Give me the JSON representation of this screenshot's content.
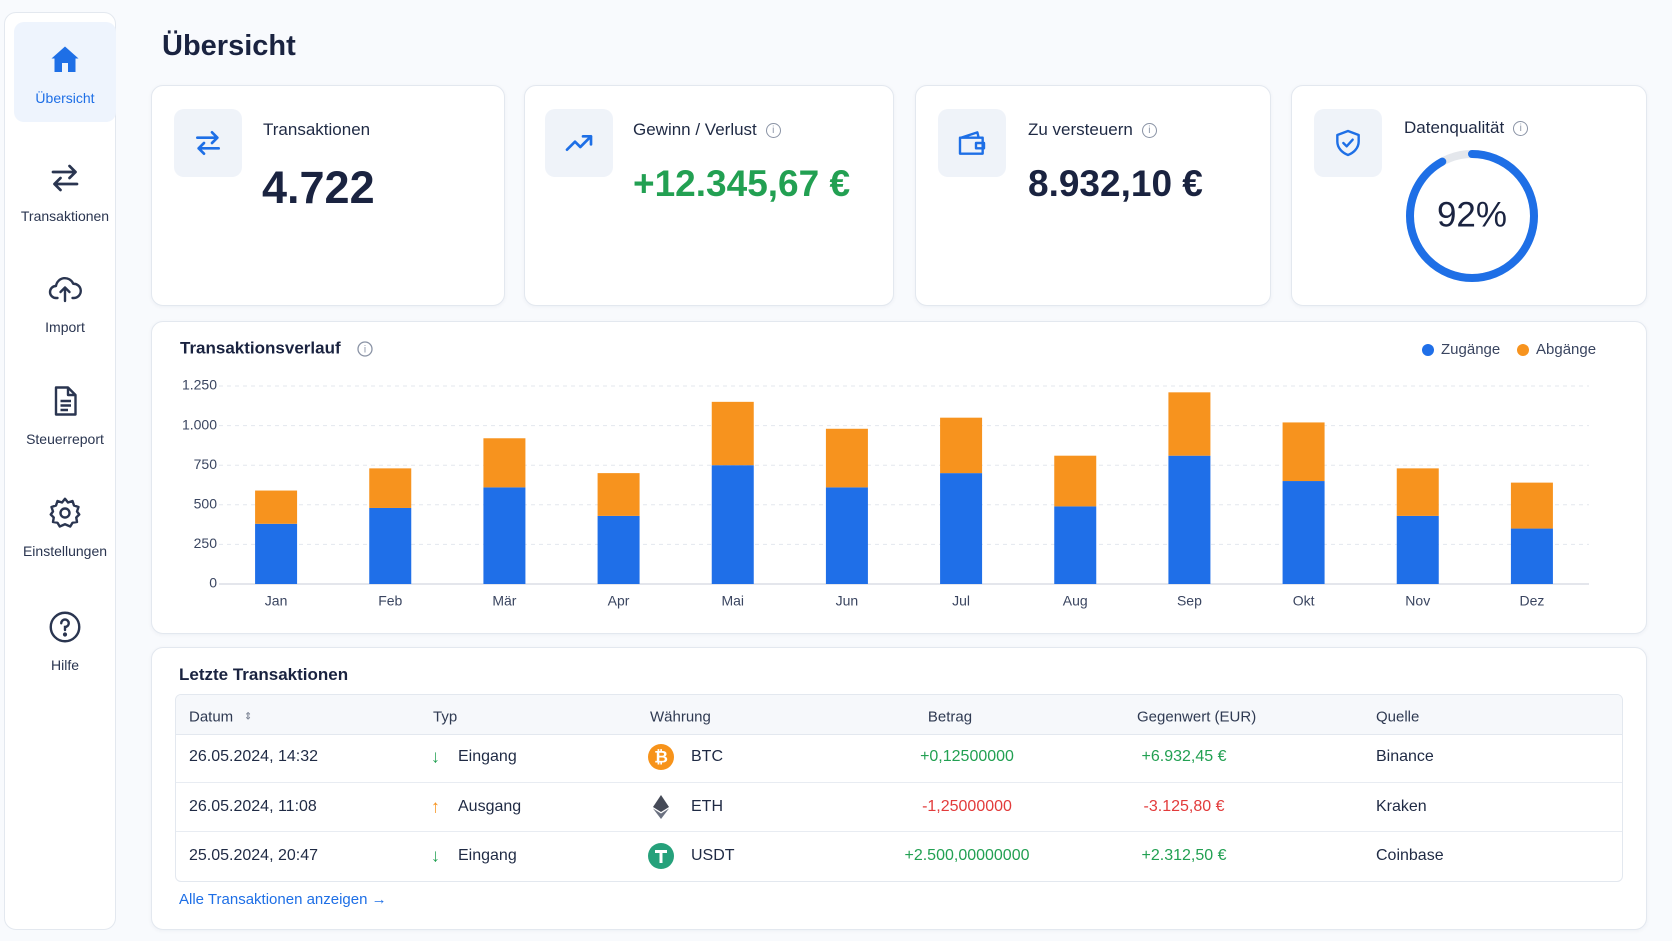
{
  "sidebar": {
    "items": [
      {
        "label": "Übersicht",
        "active": true
      },
      {
        "label": "Transaktionen",
        "active": false
      },
      {
        "label": "Import",
        "active": false
      },
      {
        "label": "Steuerreport",
        "active": false
      },
      {
        "label": "Einstellungen",
        "active": false
      },
      {
        "label": "Hilfe",
        "active": false
      }
    ]
  },
  "header": {
    "title": "Übersicht"
  },
  "cards": [
    {
      "label": "Transaktionen",
      "value": "4.722"
    },
    {
      "label": "Gewinn / Verlust",
      "value": "+12.345,67 €"
    },
    {
      "label": "Zu versteuern",
      "value": "8.932,10 €"
    }
  ],
  "quality": {
    "label": "Datenqualität",
    "value": 92,
    "value_label": "92%",
    "color": "#1e6fe6"
  },
  "chart_data": {
    "type": "bar",
    "stacked": true,
    "title": "Transaktionsverlauf",
    "categories": [
      "Jan",
      "Feb",
      "Mär",
      "Apr",
      "Mai",
      "Jun",
      "Jul",
      "Aug",
      "Sep",
      "Okt",
      "Nov",
      "Dez"
    ],
    "series": [
      {
        "name": "Zugänge",
        "color": "#1f6fe8",
        "values": [
          380,
          480,
          610,
          430,
          750,
          610,
          700,
          490,
          810,
          650,
          430,
          350
        ]
      },
      {
        "name": "Abgänge",
        "color": "#f7931e",
        "values": [
          210,
          250,
          310,
          270,
          400,
          370,
          350,
          320,
          400,
          370,
          300,
          290
        ]
      }
    ],
    "ylim": [
      0,
      1250
    ],
    "yticks": [
      0,
      250,
      500,
      750,
      {
        "value": 1000,
        "label": "1.000"
      },
      {
        "value": 1250,
        "label": "1.250"
      }
    ],
    "grid": true,
    "legend": "top-right"
  },
  "recent": {
    "title": "Letzte Transaktionen",
    "columns": [
      "Datum",
      "Typ",
      "Währung",
      "Betrag",
      "Gegenwert (EUR)",
      "Quelle"
    ],
    "rows": [
      [
        "26.05.2024, 14:32",
        "Eingang",
        "BTC",
        "+0,12500000",
        "+6.932,45 €",
        "Binance"
      ],
      [
        "26.05.2024, 11:08",
        "Ausgang",
        "ETH",
        "-1,25000000",
        "-3.125,80 €",
        "Kraken"
      ],
      [
        "25.05.2024, 20:47",
        "Eingang",
        "USDT",
        "+2.500,00000000",
        "+2.312,50 €",
        "Coinbase"
      ]
    ],
    "link": "Alle Transaktionen anzeigen"
  }
}
